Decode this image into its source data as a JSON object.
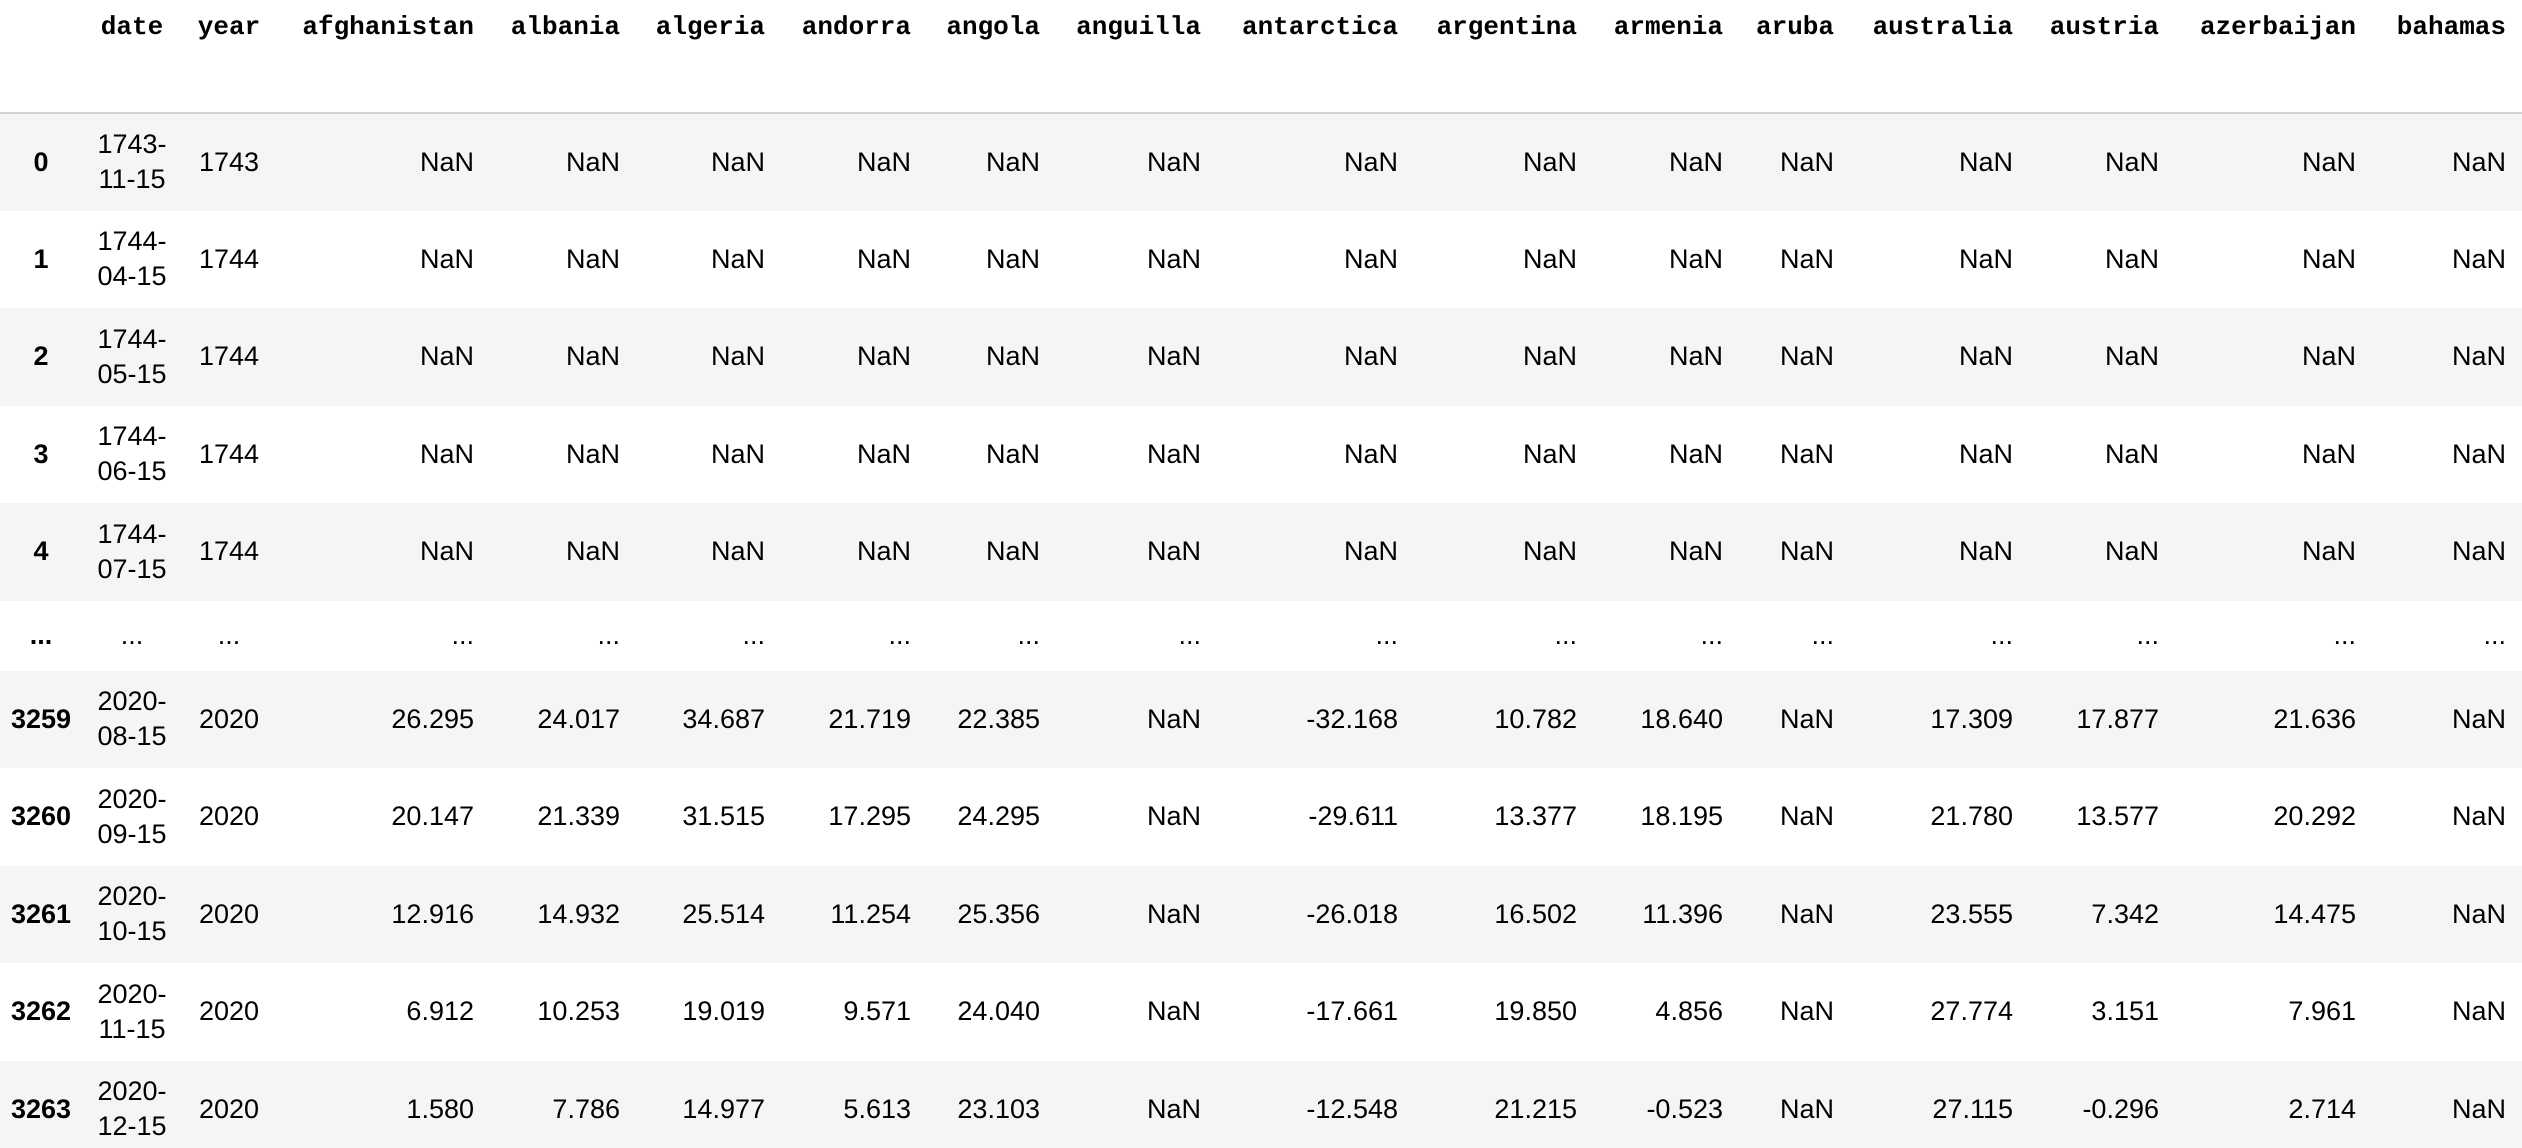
{
  "table": {
    "index_header": "",
    "columns": [
      "date",
      "year",
      "afghanistan",
      "albania",
      "algeria",
      "andorra",
      "angola",
      "anguilla",
      "antarctica",
      "argentina",
      "armenia",
      "aruba",
      "australia",
      "austria",
      "azerbaijan",
      "bahamas"
    ],
    "rows": [
      {
        "index": "0",
        "date": "1743-11-15",
        "year": "1743",
        "values": [
          "NaN",
          "NaN",
          "NaN",
          "NaN",
          "NaN",
          "NaN",
          "NaN",
          "NaN",
          "NaN",
          "NaN",
          "NaN",
          "NaN",
          "NaN",
          "NaN"
        ]
      },
      {
        "index": "1",
        "date": "1744-04-15",
        "year": "1744",
        "values": [
          "NaN",
          "NaN",
          "NaN",
          "NaN",
          "NaN",
          "NaN",
          "NaN",
          "NaN",
          "NaN",
          "NaN",
          "NaN",
          "NaN",
          "NaN",
          "NaN"
        ]
      },
      {
        "index": "2",
        "date": "1744-05-15",
        "year": "1744",
        "values": [
          "NaN",
          "NaN",
          "NaN",
          "NaN",
          "NaN",
          "NaN",
          "NaN",
          "NaN",
          "NaN",
          "NaN",
          "NaN",
          "NaN",
          "NaN",
          "NaN"
        ]
      },
      {
        "index": "3",
        "date": "1744-06-15",
        "year": "1744",
        "values": [
          "NaN",
          "NaN",
          "NaN",
          "NaN",
          "NaN",
          "NaN",
          "NaN",
          "NaN",
          "NaN",
          "NaN",
          "NaN",
          "NaN",
          "NaN",
          "NaN"
        ]
      },
      {
        "index": "4",
        "date": "1744-07-15",
        "year": "1744",
        "values": [
          "NaN",
          "NaN",
          "NaN",
          "NaN",
          "NaN",
          "NaN",
          "NaN",
          "NaN",
          "NaN",
          "NaN",
          "NaN",
          "NaN",
          "NaN",
          "NaN"
        ]
      },
      {
        "index": "...",
        "date": "...",
        "year": "...",
        "values": [
          "...",
          "...",
          "...",
          "...",
          "...",
          "...",
          "...",
          "...",
          "...",
          "...",
          "...",
          "...",
          "...",
          "..."
        ],
        "ellipsis": true
      },
      {
        "index": "3259",
        "date": "2020-08-15",
        "year": "2020",
        "values": [
          "26.295",
          "24.017",
          "34.687",
          "21.719",
          "22.385",
          "NaN",
          "-32.168",
          "10.782",
          "18.640",
          "NaN",
          "17.309",
          "17.877",
          "21.636",
          "NaN"
        ]
      },
      {
        "index": "3260",
        "date": "2020-09-15",
        "year": "2020",
        "values": [
          "20.147",
          "21.339",
          "31.515",
          "17.295",
          "24.295",
          "NaN",
          "-29.611",
          "13.377",
          "18.195",
          "NaN",
          "21.780",
          "13.577",
          "20.292",
          "NaN"
        ]
      },
      {
        "index": "3261",
        "date": "2020-10-15",
        "year": "2020",
        "values": [
          "12.916",
          "14.932",
          "25.514",
          "11.254",
          "25.356",
          "NaN",
          "-26.018",
          "16.502",
          "11.396",
          "NaN",
          "23.555",
          "7.342",
          "14.475",
          "NaN"
        ]
      },
      {
        "index": "3262",
        "date": "2020-11-15",
        "year": "2020",
        "values": [
          "6.912",
          "10.253",
          "19.019",
          "9.571",
          "24.040",
          "NaN",
          "-17.661",
          "19.850",
          "4.856",
          "NaN",
          "27.774",
          "3.151",
          "7.961",
          "NaN"
        ]
      },
      {
        "index": "3263",
        "date": "2020-12-15",
        "year": "2020",
        "values": [
          "1.580",
          "7.786",
          "14.977",
          "5.613",
          "23.103",
          "NaN",
          "-12.548",
          "21.215",
          "-0.523",
          "NaN",
          "27.115",
          "-0.296",
          "2.714",
          "NaN"
        ]
      }
    ]
  }
}
